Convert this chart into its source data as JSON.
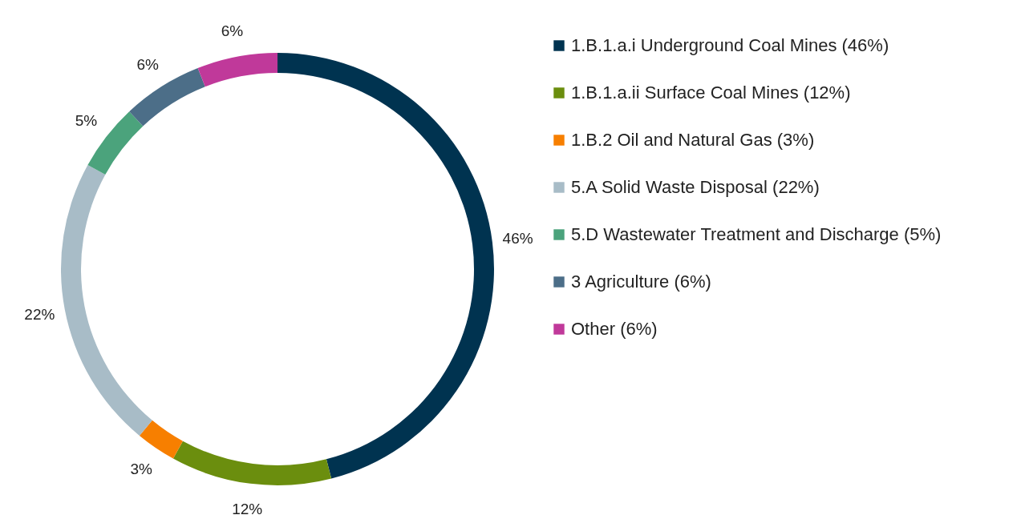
{
  "chart_data": {
    "type": "donut",
    "categories": [
      "1.B.1.a.i Underground Coal Mines (46%)",
      "1.B.1.a.ii Surface Coal Mines (12%)",
      "1.B.2 Oil and Natural Gas (3%)",
      "5.A Solid Waste Disposal (22%)",
      "5.D Wastewater Treatment and Discharge (5%)",
      "3 Agriculture (6%)",
      "Other (6%)"
    ],
    "values": [
      46,
      12,
      3,
      22,
      5,
      6,
      6
    ],
    "colors": [
      "#003350",
      "#6b8e0e",
      "#f77f00",
      "#a8bcc7",
      "#4ba37c",
      "#4c6e88",
      "#c0399a"
    ],
    "value_labels": [
      "46%",
      "12%",
      "3%",
      "22%",
      "5%",
      "6%",
      "6%"
    ],
    "legend": "right"
  }
}
